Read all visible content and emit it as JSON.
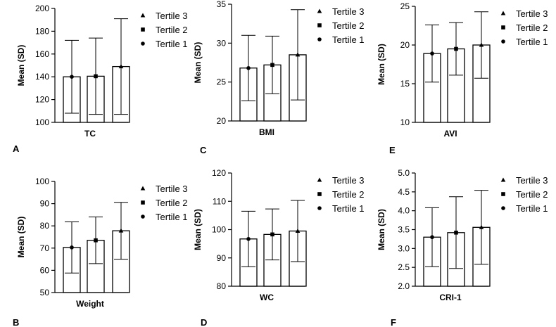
{
  "chart_data": [
    {
      "type": "bar",
      "panel_label": "A",
      "xlabel": "TC",
      "ylabel": "Mean (SD)",
      "ylim": [
        100,
        200
      ],
      "yticks": [
        100,
        120,
        140,
        160,
        180,
        200
      ],
      "categories": [
        "Tertile 1",
        "Tertile 2",
        "Tertile 3"
      ],
      "values": [
        140,
        140.5,
        149
      ],
      "sd": [
        32,
        33.5,
        42
      ],
      "legend": [
        "Tertile 3",
        "Tertile 2",
        "Tertile 1"
      ],
      "legend_position": "right"
    },
    {
      "type": "bar",
      "panel_label": "C",
      "xlabel": "BMI",
      "ylabel": "Mean (SD)",
      "ylim": [
        20,
        35
      ],
      "yticks": [
        20,
        25,
        30,
        35
      ],
      "categories": [
        "Tertile 1",
        "Tertile 2",
        "Tertile 3"
      ],
      "values": [
        26.8,
        27.2,
        28.5
      ],
      "sd": [
        4.2,
        3.7,
        5.8
      ],
      "legend": [
        "Tertile 3",
        "Tertile 2",
        "Tertile 1"
      ],
      "legend_position": "right"
    },
    {
      "type": "bar",
      "panel_label": "E",
      "xlabel": "AVI",
      "ylabel": "Mean (SD)",
      "ylim": [
        10,
        25
      ],
      "yticks": [
        10,
        15,
        20,
        25
      ],
      "categories": [
        "Tertile 1",
        "Tertile 2",
        "Tertile 3"
      ],
      "values": [
        18.9,
        19.5,
        20.0
      ],
      "sd": [
        3.7,
        3.4,
        4.3
      ],
      "legend": [
        "Tertile 3",
        "Tertile 2",
        "Tertile 1"
      ],
      "legend_position": "right"
    },
    {
      "type": "bar",
      "panel_label": "B",
      "xlabel": "Weight",
      "ylabel": "Mean (SD)",
      "ylim": [
        50,
        100
      ],
      "yticks": [
        50,
        60,
        70,
        80,
        90,
        100
      ],
      "categories": [
        "Tertile 1",
        "Tertile 2",
        "Tertile 3"
      ],
      "values": [
        70.3,
        73.5,
        77.8
      ],
      "sd": [
        11.5,
        10.5,
        12.8
      ],
      "legend": [
        "Tertile 3",
        "Tertile 2",
        "Tertile 1"
      ],
      "legend_position": "right"
    },
    {
      "type": "bar",
      "panel_label": "D",
      "xlabel": "WC",
      "ylabel": "Mean (SD)",
      "ylim": [
        80,
        120
      ],
      "yticks": [
        80,
        90,
        100,
        110,
        120
      ],
      "categories": [
        "Tertile 1",
        "Tertile 2",
        "Tertile 3"
      ],
      "values": [
        96.7,
        98.3,
        99.5
      ],
      "sd": [
        9.8,
        9.0,
        10.8
      ],
      "legend": [
        "Tertile 3",
        "Tertile 2",
        "Tertile 1"
      ],
      "legend_position": "right"
    },
    {
      "type": "bar",
      "panel_label": "F",
      "xlabel": "CRI-1",
      "ylabel": "Mean (SD)",
      "ylim": [
        2.0,
        5.0
      ],
      "yticks": [
        "2.0",
        "2.5",
        "3.0",
        "3.5",
        "4.0",
        "4.5",
        "5.0"
      ],
      "categories": [
        "Tertile 1",
        "Tertile 2",
        "Tertile 3"
      ],
      "values": [
        3.3,
        3.42,
        3.56
      ],
      "sd": [
        0.78,
        0.95,
        0.98
      ],
      "legend": [
        "Tertile 3",
        "Tertile 2",
        "Tertile 1"
      ],
      "legend_position": "right"
    }
  ]
}
